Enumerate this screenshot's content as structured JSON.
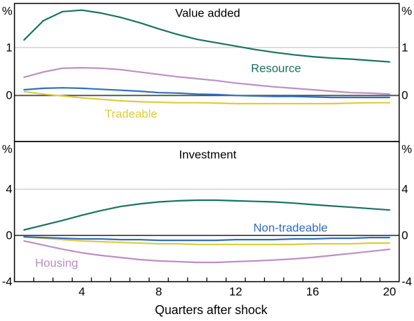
{
  "figure": {
    "xaxis": {
      "label": "Quarters after shock",
      "tick_labels": [
        "4",
        "8",
        "12",
        "16",
        "20"
      ],
      "tick_values": [
        4,
        8,
        12,
        16,
        20
      ],
      "range": [
        0.5,
        20.5
      ],
      "minor_ticks_every": 1,
      "minor_tick_start": 1.5,
      "minor_tick_end": 19.5
    },
    "colors": {
      "resource": "#16735E",
      "housing": "#BD8EC4",
      "non_tradeable": "#2F6EBE",
      "tradeable": "#DFCB3F",
      "gridline": "#C9C9C9",
      "zero_line": "#4D4D4D",
      "frame": "#000000"
    }
  },
  "chart_data": [
    {
      "type": "line",
      "panel": "top",
      "title": "Value added",
      "unit_label": "%",
      "ylabel_sides": "both",
      "x": [
        1,
        2,
        3,
        4,
        5,
        6,
        7,
        8,
        9,
        10,
        11,
        12,
        13,
        14,
        15,
        16,
        17,
        18,
        19,
        20
      ],
      "ylim": [
        -0.96,
        1.92
      ],
      "gridlines": [
        1
      ],
      "yticks": [
        {
          "label": "1",
          "value": 1
        },
        {
          "label": "0",
          "value": 0
        }
      ],
      "series": [
        {
          "name": "Resource",
          "color": "#16735E",
          "values": [
            1.16,
            1.56,
            1.75,
            1.78,
            1.72,
            1.63,
            1.52,
            1.39,
            1.27,
            1.17,
            1.1,
            1.03,
            0.96,
            0.9,
            0.85,
            0.81,
            0.78,
            0.76,
            0.73,
            0.7
          ]
        },
        {
          "name": "Housing",
          "color": "#BD8EC4",
          "values": [
            0.38,
            0.49,
            0.57,
            0.58,
            0.57,
            0.54,
            0.49,
            0.44,
            0.39,
            0.35,
            0.31,
            0.26,
            0.22,
            0.18,
            0.15,
            0.12,
            0.09,
            0.06,
            0.05,
            0.03
          ]
        },
        {
          "name": "Non-tradeable",
          "color": "#2F6EBE",
          "values": [
            0.12,
            0.15,
            0.16,
            0.15,
            0.13,
            0.11,
            0.09,
            0.06,
            0.05,
            0.03,
            0.02,
            0.0,
            -0.01,
            -0.02,
            -0.02,
            -0.03,
            -0.04,
            -0.04,
            -0.04,
            -0.04
          ]
        },
        {
          "name": "Tradeable",
          "color": "#DFCB3F",
          "values": [
            0.08,
            0.03,
            -0.01,
            -0.05,
            -0.08,
            -0.11,
            -0.13,
            -0.14,
            -0.15,
            -0.15,
            -0.16,
            -0.17,
            -0.17,
            -0.17,
            -0.17,
            -0.17,
            -0.17,
            -0.16,
            -0.15,
            -0.15
          ]
        }
      ]
    },
    {
      "type": "line",
      "panel": "bottom",
      "title": "Investment",
      "unit_label": "%",
      "ylabel_sides": "both",
      "x": [
        1,
        2,
        3,
        4,
        5,
        6,
        7,
        8,
        9,
        10,
        11,
        12,
        13,
        14,
        15,
        16,
        17,
        18,
        19,
        20
      ],
      "ylim": [
        -4,
        8.13
      ],
      "gridlines": [
        4
      ],
      "yticks": [
        {
          "label": "4",
          "value": 4
        },
        {
          "label": "0",
          "value": 0
        },
        {
          "label": "-4",
          "value": -4
        }
      ],
      "series": [
        {
          "name": "Resource",
          "color": "#16735E",
          "values": [
            0.48,
            0.89,
            1.3,
            1.75,
            2.15,
            2.5,
            2.73,
            2.9,
            3.0,
            3.05,
            3.05,
            3.0,
            2.95,
            2.9,
            2.8,
            2.67,
            2.55,
            2.44,
            2.32,
            2.2
          ]
        },
        {
          "name": "Housing",
          "color": "#BD8EC4",
          "values": [
            -0.48,
            -0.84,
            -1.2,
            -1.5,
            -1.73,
            -1.91,
            -2.09,
            -2.21,
            -2.27,
            -2.33,
            -2.33,
            -2.27,
            -2.21,
            -2.13,
            -2.03,
            -1.9,
            -1.73,
            -1.56,
            -1.38,
            -1.2
          ]
        },
        {
          "name": "Non-tradeable",
          "color": "#2F6EBE",
          "values": [
            -0.12,
            -0.18,
            -0.24,
            -0.3,
            -0.3,
            -0.36,
            -0.36,
            -0.42,
            -0.42,
            -0.42,
            -0.42,
            -0.36,
            -0.36,
            -0.36,
            -0.3,
            -0.3,
            -0.24,
            -0.24,
            -0.18,
            -0.18
          ]
        },
        {
          "name": "Tradeable",
          "color": "#DFCB3F",
          "values": [
            -0.12,
            -0.24,
            -0.36,
            -0.48,
            -0.54,
            -0.6,
            -0.66,
            -0.72,
            -0.72,
            -0.78,
            -0.78,
            -0.78,
            -0.78,
            -0.78,
            -0.78,
            -0.72,
            -0.72,
            -0.72,
            -0.66,
            -0.66
          ]
        }
      ]
    }
  ]
}
